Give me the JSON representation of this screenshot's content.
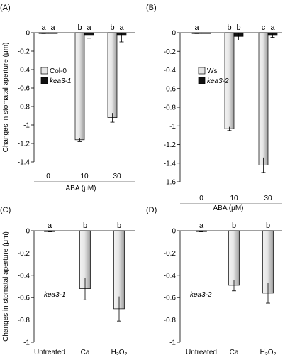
{
  "figure": {
    "y_axis_label": "Changes in stomatal aperture (μm)"
  },
  "chart_data": [
    {
      "panel": "(A)",
      "type": "bar",
      "categories": [
        "0",
        "10",
        "30"
      ],
      "xlabel": "ABA (μM)",
      "ylabel": "Changes in stomatal aperture (μm)",
      "ylim": [
        -1.4,
        0
      ],
      "yticks": [
        "0",
        "-0.2",
        "-0.4",
        "-0.6",
        "-0.8",
        "-1",
        "-1.2",
        "-1.4"
      ],
      "legend": "middle-left",
      "series": [
        {
          "name": "Col-0",
          "values": [
            0.0,
            -1.16,
            -0.92
          ],
          "errors": [
            0.01,
            0.02,
            0.05
          ]
        },
        {
          "name": "kea3-1",
          "values": [
            0.0,
            -0.03,
            -0.03
          ],
          "errors": [
            0.0,
            0.03,
            0.07
          ]
        }
      ],
      "letters": [
        [
          "a",
          "a"
        ],
        [
          "b",
          "a"
        ],
        [
          "b",
          "a"
        ]
      ]
    },
    {
      "panel": "(B)",
      "type": "bar",
      "categories": [
        "0",
        "10",
        "30"
      ],
      "xlabel": "ABA (μM)",
      "ylabel": "",
      "ylim": [
        -1.6,
        0
      ],
      "yticks": [
        "0",
        "-0.2",
        "-0.4",
        "-0.6",
        "-0.8",
        "-1",
        "-1.2",
        "-1.4",
        "-1.6"
      ],
      "legend": "middle-left",
      "series": [
        {
          "name": "Ws",
          "values": [
            0.0,
            -1.03,
            -1.42
          ],
          "errors": [
            0.01,
            0.02,
            0.08
          ]
        },
        {
          "name": "kea3-2",
          "values": [
            0.0,
            -0.04,
            -0.03
          ],
          "errors": [
            0.0,
            0.04,
            0.02
          ]
        }
      ],
      "letters": [
        [
          "a",
          ""
        ],
        [
          "b",
          "b"
        ],
        [
          "c",
          "a"
        ]
      ]
    },
    {
      "panel": "(C)",
      "type": "bar",
      "categories": [
        "Untreated",
        "Ca",
        "H2O2"
      ],
      "xlabel": "",
      "ylabel": "Changes in stomatal aperture (μm)",
      "ylim": [
        -1,
        0
      ],
      "yticks": [
        "0",
        "-0.2",
        "-0.4",
        "-0.6",
        "-0.8",
        "-1"
      ],
      "annotation": "kea3-1",
      "series": [
        {
          "name": "kea3-1",
          "values": [
            0.0,
            -0.52,
            -0.7
          ],
          "errors": [
            0.01,
            0.1,
            0.11
          ]
        }
      ],
      "letters": [
        "a",
        "b",
        "b"
      ]
    },
    {
      "panel": "(D)",
      "type": "bar",
      "categories": [
        "Untreated",
        "Ca",
        "H2O2"
      ],
      "xlabel": "",
      "ylabel": "",
      "ylim": [
        -1,
        0
      ],
      "yticks": [
        "0",
        "-0.2",
        "-0.4",
        "-0.6",
        "-0.8",
        "-1"
      ],
      "annotation": "kea3-2",
      "series": [
        {
          "name": "kea3-2",
          "values": [
            0.0,
            -0.49,
            -0.56
          ],
          "errors": [
            0.01,
            0.05,
            0.09
          ]
        }
      ],
      "letters": [
        "a",
        "b",
        "b"
      ]
    }
  ]
}
